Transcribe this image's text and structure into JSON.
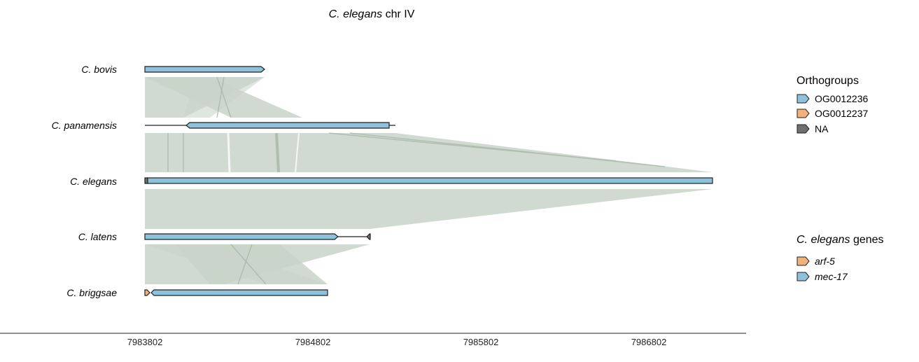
{
  "title": {
    "italic": "C. elegans",
    "plain": " chr IV"
  },
  "axis": {
    "ticks": [
      "7983802",
      "7984802",
      "7985802",
      "7986802"
    ]
  },
  "tracks": [
    {
      "label": "C. bovis"
    },
    {
      "label": "C. panamensis"
    },
    {
      "label": "C. elegans"
    },
    {
      "label": "C. latens"
    },
    {
      "label": "C. briggsae"
    }
  ],
  "legend_orthogroups": {
    "title": "Orthogroups",
    "items": [
      {
        "label": "OG0012236",
        "color": "#8ec1dc"
      },
      {
        "label": "OG0012237",
        "color": "#f0b27a"
      },
      {
        "label": "NA",
        "color": "#6e6e6e"
      }
    ]
  },
  "legend_genes": {
    "title_italic": "C. elegans",
    "title_plain": " genes",
    "items": [
      {
        "label": "arf-5",
        "color": "#f0b27a"
      },
      {
        "label": "mec-17",
        "color": "#8ec1dc"
      }
    ]
  },
  "colors": {
    "synteny": "#c9d3c9",
    "synteny_line": "#a8b8a8",
    "blue": "#8ec1dc",
    "orange": "#f0b27a",
    "grey": "#6e6e6e"
  }
}
